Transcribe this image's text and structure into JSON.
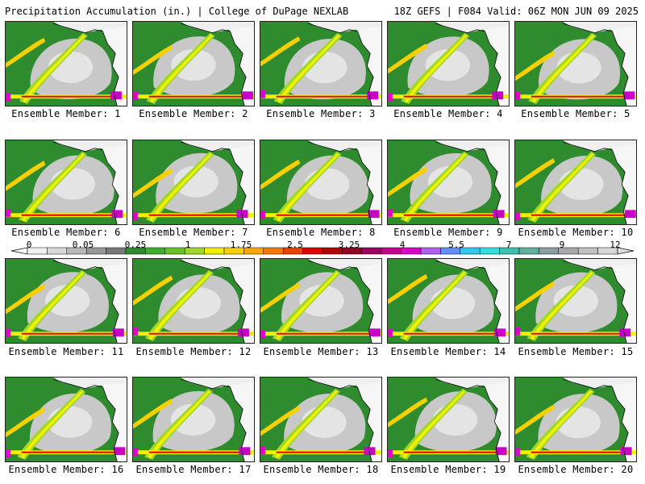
{
  "header": {
    "left_title": "Precipitation Accumulation (in.) | College of DuPage NEXLAB",
    "right_title": "18Z GEFS | F084 Valid: 06Z MON JUN 09 2025"
  },
  "members": [
    "Ensemble Member: 1",
    "Ensemble Member: 2",
    "Ensemble Member: 3",
    "Ensemble Member: 4",
    "Ensemble Member: 5",
    "Ensemble Member: 6",
    "Ensemble Member: 7",
    "Ensemble Member: 8",
    "Ensemble Member: 9",
    "Ensemble Member: 10",
    "Ensemble Member: 11",
    "Ensemble Member: 12",
    "Ensemble Member: 13",
    "Ensemble Member: 14",
    "Ensemble Member: 15",
    "Ensemble Member: 16",
    "Ensemble Member: 17",
    "Ensemble Member: 18",
    "Ensemble Member: 19",
    "Ensemble Member: 20"
  ],
  "colorbar": {
    "labels": [
      "0",
      "0.05",
      "0.25",
      "1",
      "1.75",
      "2.5",
      "3.25",
      "4",
      "5.5",
      "7",
      "9",
      "12"
    ],
    "colors": [
      "#f0f0f0",
      "#d8d8d8",
      "#b8b8b8",
      "#989898",
      "#787878",
      "#2e8b2e",
      "#3fae2e",
      "#66c22a",
      "#a0d82a",
      "#f0f000",
      "#f8d000",
      "#f8a800",
      "#f87800",
      "#f04000",
      "#e00000",
      "#b80000",
      "#900020",
      "#a00060",
      "#c80090",
      "#e000c8",
      "#b060f0",
      "#6090f8",
      "#30c8f0",
      "#30e0e0",
      "#40c0b0",
      "#60b0a0",
      "#8aa0a0",
      "#a8a8a8",
      "#c0c0c0",
      "#d8d8d8"
    ]
  }
}
